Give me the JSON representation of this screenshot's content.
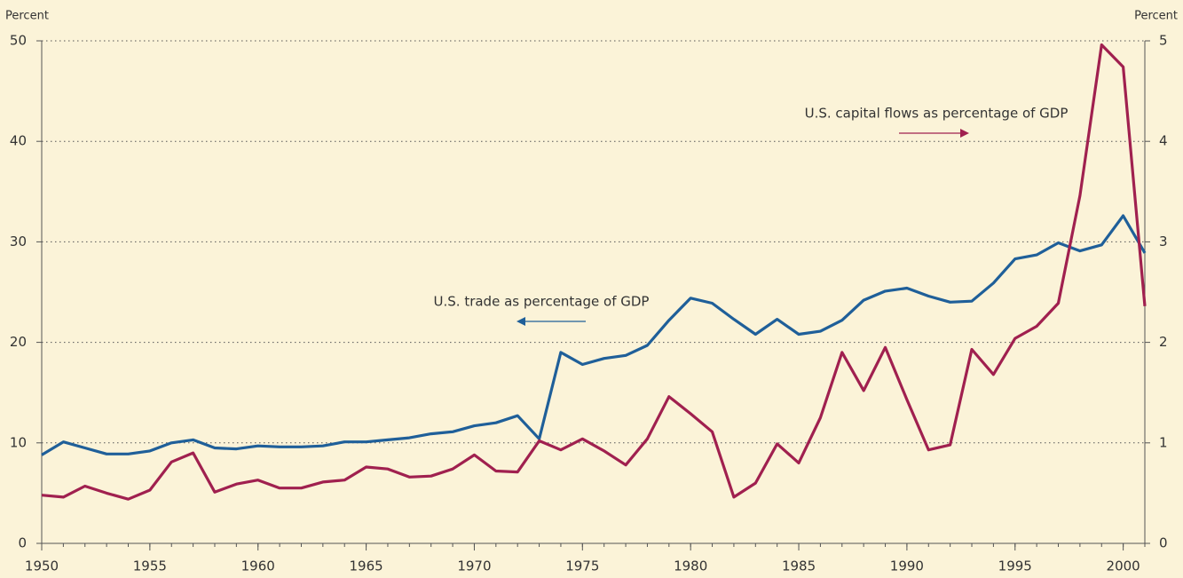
{
  "chart_data": {
    "type": "line",
    "y_label": "Percent",
    "y2_label": "Percent",
    "annotations": [
      "U.S. trade as percentage of GDP",
      "U.S. capital flows as percentage of GDP"
    ],
    "x": [
      1950,
      1951,
      1952,
      1953,
      1954,
      1955,
      1956,
      1957,
      1958,
      1959,
      1960,
      1961,
      1962,
      1963,
      1964,
      1965,
      1966,
      1967,
      1968,
      1969,
      1970,
      1971,
      1972,
      1973,
      1974,
      1975,
      1976,
      1977,
      1978,
      1979,
      1980,
      1981,
      1982,
      1983,
      1984,
      1985,
      1986,
      1987,
      1988,
      1989,
      1990,
      1991,
      1992,
      1993,
      1994,
      1995,
      1996,
      1997,
      1998,
      1999,
      2000,
      2001
    ],
    "series": [
      {
        "name": "U.S. trade as percentage of GDP",
        "color": "#1f5f99",
        "axis": "y",
        "values": [
          8.8,
          10.1,
          9.5,
          8.9,
          8.9,
          9.2,
          10.0,
          10.3,
          9.5,
          9.4,
          9.7,
          9.6,
          9.6,
          9.7,
          10.1,
          10.1,
          10.3,
          10.5,
          10.9,
          11.1,
          11.7,
          12.0,
          12.7,
          10.4,
          19.0,
          17.8,
          18.4,
          18.7,
          19.7,
          22.2,
          24.4,
          23.9,
          22.3,
          20.8,
          22.3,
          20.8,
          21.1,
          22.2,
          24.2,
          25.1,
          25.4,
          24.6,
          24.0,
          24.1,
          25.9,
          28.3,
          28.7,
          29.9,
          29.1,
          29.7,
          32.6,
          28.9
        ]
      },
      {
        "name": "U.S. capital flows as percentage of GDP",
        "color": "#a0204f",
        "axis": "y2",
        "values": [
          0.48,
          0.46,
          0.57,
          0.5,
          0.44,
          0.53,
          0.81,
          0.9,
          0.51,
          0.59,
          0.63,
          0.55,
          0.55,
          0.61,
          0.63,
          0.76,
          0.74,
          0.66,
          0.67,
          0.74,
          0.88,
          0.72,
          0.71,
          1.02,
          0.93,
          1.04,
          0.92,
          0.78,
          1.04,
          1.46,
          1.29,
          1.11,
          0.46,
          0.6,
          0.99,
          0.8,
          1.25,
          1.9,
          1.52,
          1.95,
          1.43,
          0.93,
          0.98,
          1.93,
          1.68,
          2.04,
          2.16,
          2.39,
          3.46,
          4.96,
          4.74,
          2.36
        ]
      }
    ],
    "xlim": [
      1950,
      2001
    ],
    "xticks": [
      1950,
      1955,
      1960,
      1965,
      1970,
      1975,
      1980,
      1985,
      1990,
      1995,
      2000
    ],
    "ylim": [
      0,
      50
    ],
    "yticks": [
      0,
      10,
      20,
      30,
      40,
      50
    ],
    "y2lim": [
      0,
      5
    ],
    "y2ticks": [
      0,
      1,
      2,
      3,
      4,
      5
    ],
    "grid": true
  }
}
